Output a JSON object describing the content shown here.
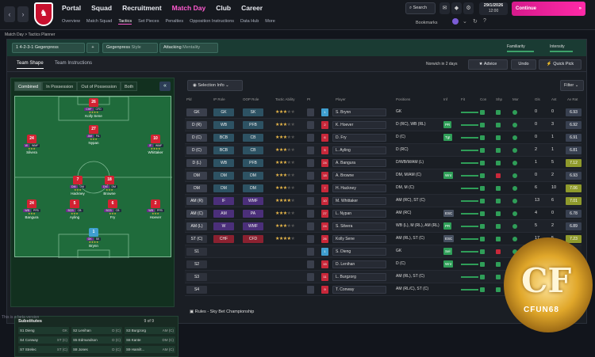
{
  "topbar": {
    "back": "‹",
    "forward": "›",
    "nav": [
      "Portal",
      "Squad",
      "Recruitment",
      "Match Day",
      "Club",
      "Career"
    ],
    "subnav": [
      "Overview",
      "Match Squad",
      "Tactics",
      "Set Pieces",
      "Penalties",
      "Opposition Instructions",
      "Data Hub",
      "More"
    ],
    "search": "Search",
    "date": "29/1/2026",
    "time": "12:00",
    "continue": "Continue",
    "bookmarks": "Bookmarks"
  },
  "breadcrumb": "Match Day  >  Tactics Planner",
  "tactic": {
    "name": "1  4-2-3-1 Gegenpress",
    "plus": "+",
    "style_name": "Gegenpress",
    "style_label": "Style",
    "mentality_name": "Attacking",
    "mentality_label": "Mentality",
    "familiarity": "Familiarity",
    "intensity": "Intensity",
    "familiarity_level": 0.7,
    "intensity_level": 0.7
  },
  "tabs": [
    "Team Shape",
    "Team Instructions"
  ],
  "opponent": "Norwich  in 2 days",
  "advice": "Advice",
  "undo": "Undo",
  "quickpick": "Quick Pick",
  "segments": [
    "Combined",
    "In Possession",
    "Out of Possession",
    "Both"
  ],
  "pitch_players": [
    {
      "num": "26",
      "name": "Kolly Sene",
      "stars": "★★★★",
      "roles": [
        "CHF",
        "CFD"
      ]
    },
    {
      "num": "27",
      "name": "Nypan",
      "stars": "★★★",
      "roles": [
        "AM",
        "PA"
      ]
    },
    {
      "num": "24",
      "name": "Silvera",
      "stars": "★★★",
      "roles": [
        "W",
        "WMF"
      ]
    },
    {
      "num": "10",
      "name": "Whittaker",
      "stars": "★★★★",
      "roles": [
        "IF",
        "WMF"
      ]
    },
    {
      "num": "7",
      "name": "Hackney",
      "stars": "★★★",
      "roles": [
        "DM",
        "DM"
      ]
    },
    {
      "num": "18",
      "name": "Browne",
      "stars": "★★★",
      "roles": [
        "DM",
        "DM"
      ]
    },
    {
      "num": "24",
      "name": "Bangura",
      "stars": "★★★",
      "roles": [
        "WB",
        "PFB"
      ]
    },
    {
      "num": "5",
      "name": "Ayling",
      "stars": "★★★",
      "roles": [
        "BCB",
        "CB"
      ]
    },
    {
      "num": "6",
      "name": "Fry",
      "stars": "★★★",
      "roles": [
        "BCB",
        "CB"
      ]
    },
    {
      "num": "2",
      "name": "Hoever",
      "stars": "★★★",
      "roles": [
        "WB",
        "PFB"
      ]
    },
    {
      "num": "1",
      "name": "Brynn",
      "stars": "★★★★",
      "roles": [
        "GK",
        "SK"
      ]
    }
  ],
  "subs": {
    "title": "Substitutes",
    "count": "9 of 9",
    "list": [
      {
        "n": "S1",
        "name": "Dieng",
        "pos": "GK"
      },
      {
        "n": "S2",
        "name": "Lenihan",
        "pos": "D (C)"
      },
      {
        "n": "S3",
        "name": "Burgzorg",
        "pos": "AM (C)"
      },
      {
        "n": "S4",
        "name": "Conway",
        "pos": "ST (C)"
      },
      {
        "n": "S5",
        "name": "Edmundson",
        "pos": "D (C)"
      },
      {
        "n": "S6",
        "name": "Kante",
        "pos": "DM (C)"
      },
      {
        "n": "S7",
        "name": "Strelec",
        "pos": "ST (C)"
      },
      {
        "n": "S8",
        "name": "Jones",
        "pos": "D (C)"
      },
      {
        "n": "S9",
        "name": "Hamilt...",
        "pos": "AM (C)"
      }
    ]
  },
  "selection_info": "Selection Info",
  "filter": "Filter",
  "table_headers": [
    "Pld",
    "IP Role",
    "OOP Role",
    "Tactic Ability",
    "PI",
    "Player",
    "Positions",
    "Inf",
    "Fit",
    "Con",
    "Shp",
    "Mor",
    "Gls",
    "Ast",
    "Av Rat"
  ],
  "rows": [
    {
      "pld": "GK",
      "ip": "GK",
      "op": "SK",
      "stars": 3,
      "sh": "1",
      "name": "S. Brynn",
      "pos": "GK",
      "inf": "",
      "gls": "0",
      "ast": "0",
      "rat": "6.93"
    },
    {
      "pld": "D (R)",
      "ip": "WB",
      "op": "PFB",
      "stars": 3,
      "sh": "2",
      "name": "K. Hoever",
      "pos": "D (RC), WB (RL)",
      "inf": "PR",
      "gls": "0",
      "ast": "3",
      "rat": "6.92"
    },
    {
      "pld": "D (C)",
      "ip": "BCB",
      "op": "CB",
      "stars": 3,
      "sh": "6",
      "name": "D. Fry",
      "pos": "D (C)",
      "inf": "Tgt",
      "gls": "0",
      "ast": "1",
      "rat": "6.91"
    },
    {
      "pld": "D (C)",
      "ip": "BCB",
      "op": "CB",
      "stars": 3,
      "sh": "5",
      "name": "L. Ayling",
      "pos": "D (RC)",
      "inf": "",
      "gls": "2",
      "ast": "1",
      "rat": "6.81"
    },
    {
      "pld": "D (L)",
      "ip": "WB",
      "op": "PFB",
      "stars": 3,
      "sh": "24",
      "name": "A. Bangura",
      "pos": "D/WB/M/AM (L)",
      "inf": "",
      "gls": "1",
      "ast": "5",
      "rat": "7.12"
    },
    {
      "pld": "DM",
      "ip": "DM",
      "op": "DM",
      "stars": 3,
      "sh": "18",
      "name": "A. Browne",
      "pos": "DM, M/AM (C)",
      "inf": "Wnt",
      "gls": "0",
      "ast": "2",
      "rat": "6.93"
    },
    {
      "pld": "DM",
      "ip": "DM",
      "op": "DM",
      "stars": 3,
      "sh": "7",
      "name": "H. Hackney",
      "pos": "DM, M (C)",
      "inf": "",
      "gls": "6",
      "ast": "10",
      "rat": "7.06"
    },
    {
      "pld": "AM (R)",
      "ip": "IF",
      "op": "WMF",
      "stars": 4,
      "sh": "10",
      "name": "M. Whittaker",
      "pos": "AM (RC), ST (C)",
      "inf": "",
      "gls": "13",
      "ast": "6",
      "rat": "7.01"
    },
    {
      "pld": "AM (C)",
      "ip": "AM",
      "op": "PA",
      "stars": 3,
      "sh": "27",
      "name": "L. Nypan",
      "pos": "AM (RC)",
      "inf": "ESC",
      "gls": "4",
      "ast": "0",
      "rat": "6.78"
    },
    {
      "pld": "AM (L)",
      "ip": "W",
      "op": "WMF",
      "stars": 3,
      "sh": "24",
      "name": "S. Silvera",
      "pos": "WB (L), M (RL), AM (RL)",
      "inf": "PR",
      "gls": "5",
      "ast": "2",
      "rat": "6.89"
    },
    {
      "pld": "ST (C)",
      "ip": "CHF",
      "op": "CFD",
      "stars": 4,
      "sh": "26",
      "name": "Kolly Sene",
      "pos": "AM (RL), ST (C)",
      "inf": "ESC",
      "gls": "17",
      "ast": "5",
      "rat": "7.23"
    },
    {
      "pld": "S1",
      "ip": "",
      "op": "",
      "stars": 0,
      "sh": "1",
      "name": "S. Dieng",
      "pos": "GK",
      "inf": "Sel",
      "gls": "",
      "ast": "",
      "rat": ""
    },
    {
      "pld": "S2",
      "ip": "",
      "op": "",
      "stars": 0,
      "sh": "15",
      "name": "D. Lenihan",
      "pos": "D (C)",
      "inf": "Wnt",
      "gls": "",
      "ast": "",
      "rat": ""
    },
    {
      "pld": "S3",
      "ip": "",
      "op": "",
      "stars": 0,
      "sh": "11",
      "name": "L. Burgzorg",
      "pos": "AM (RL), ST (C)",
      "inf": "",
      "gls": "",
      "ast": "",
      "rat": ""
    },
    {
      "pld": "S4",
      "ip": "",
      "op": "",
      "stars": 0,
      "sh": "9",
      "name": "T. Conway",
      "pos": "AM (RL/C), ST (C)",
      "inf": "",
      "gls": "",
      "ast": "",
      "rat": ""
    }
  ],
  "rules": "Rules - Sky Bet Championship",
  "beta": "This is a beta version",
  "logo": {
    "big": "CF",
    "small": "CFUN68"
  }
}
